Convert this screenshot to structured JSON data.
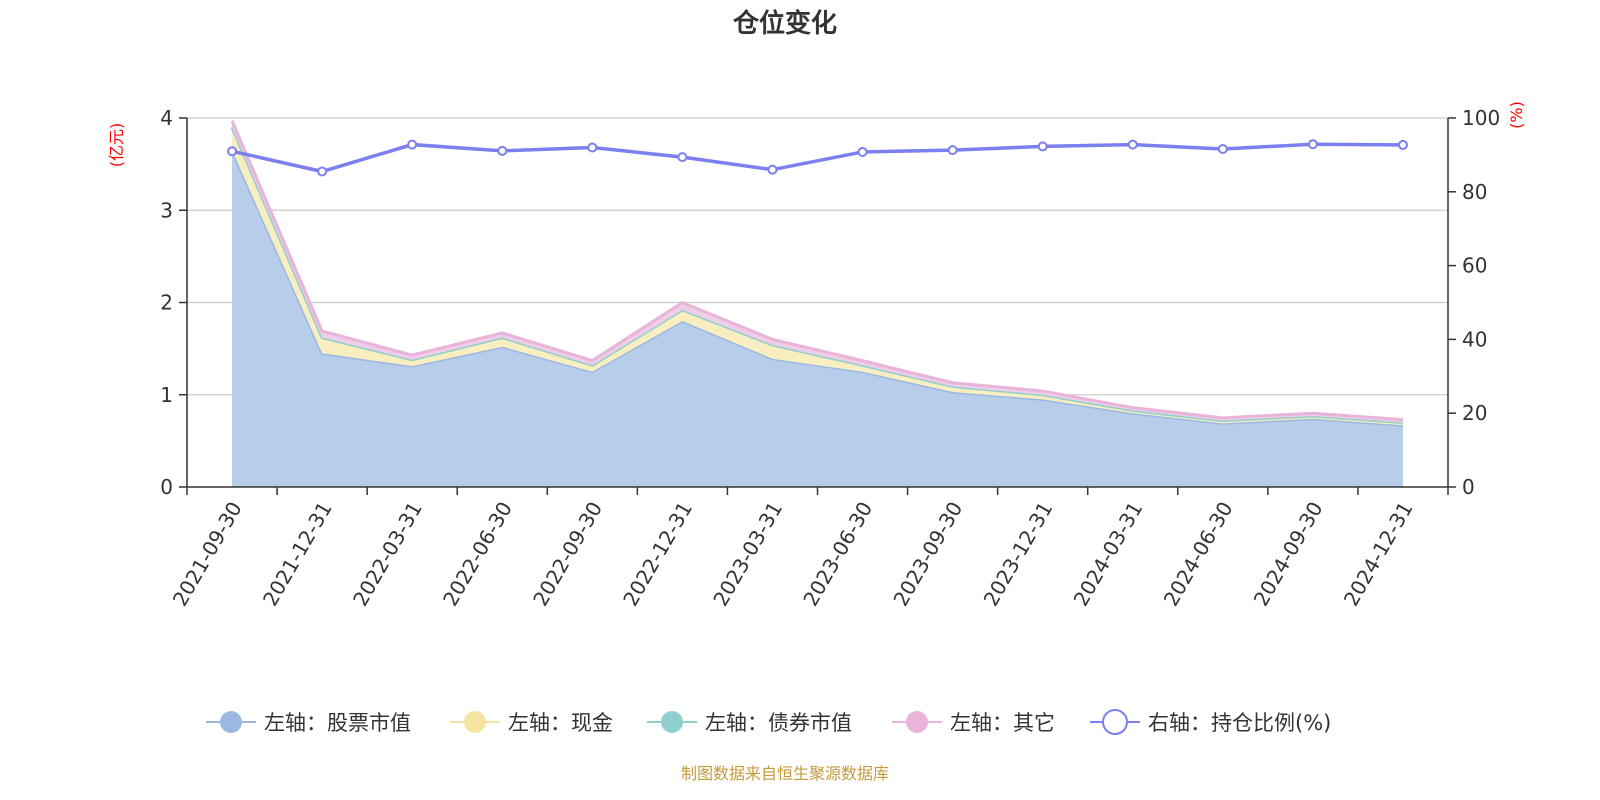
{
  "chart_data": {
    "type": "area",
    "title": "仓位变化",
    "categories": [
      "2021-09-30",
      "2021-12-31",
      "2022-03-31",
      "2022-06-30",
      "2022-09-30",
      "2022-12-31",
      "2023-03-31",
      "2023-06-30",
      "2023-09-30",
      "2023-12-31",
      "2024-03-31",
      "2024-06-30",
      "2024-09-30",
      "2024-12-31"
    ],
    "left_axis": {
      "unit_label": "(亿元)",
      "ylim": [
        0,
        4
      ],
      "ticks": [
        "0",
        "1",
        "2",
        "3",
        "4"
      ]
    },
    "right_axis": {
      "unit_label": "(%)",
      "ylim": [
        0,
        100
      ],
      "ticks": [
        "0",
        "20",
        "40",
        "60",
        "80",
        "100"
      ]
    },
    "series": [
      {
        "name": "左轴：股票市值",
        "axis": "left",
        "stacked": true,
        "color": "#9bb8e1",
        "fill": "#b8cdea",
        "values": [
          3.65,
          1.45,
          1.31,
          1.52,
          1.25,
          1.8,
          1.39,
          1.25,
          1.03,
          0.95,
          0.8,
          0.69,
          0.74,
          0.67
        ]
      },
      {
        "name": "左轴：现金",
        "axis": "left",
        "stacked": true,
        "color": "#f5e4a0",
        "fill": "#f9eec0",
        "values": [
          0.25,
          0.17,
          0.07,
          0.1,
          0.07,
          0.12,
          0.15,
          0.07,
          0.06,
          0.05,
          0.03,
          0.03,
          0.03,
          0.03
        ]
      },
      {
        "name": "左轴：债券市值",
        "axis": "left",
        "stacked": true,
        "color": "#8fd0cf",
        "fill": "#b5e2e1",
        "values": [
          0,
          0,
          0,
          0,
          0,
          0,
          0,
          0,
          0,
          0,
          0,
          0,
          0,
          0
        ]
      },
      {
        "name": "左轴：其它",
        "axis": "left",
        "stacked": true,
        "color": "#e8b4da",
        "fill": "#f0cde6",
        "values": [
          0.07,
          0.07,
          0.05,
          0.05,
          0.05,
          0.08,
          0.06,
          0.05,
          0.04,
          0.04,
          0.03,
          0.03,
          0.03,
          0.03
        ]
      },
      {
        "name": "右轴：持仓比例(%)",
        "axis": "right",
        "stacked": false,
        "color": "#7b7ff0",
        "fill": "none",
        "values": [
          91.0,
          85.5,
          92.8,
          91.1,
          92.0,
          89.4,
          86.0,
          90.8,
          91.3,
          92.3,
          92.8,
          91.6,
          92.9,
          92.7
        ]
      }
    ],
    "source_note": "制图数据来自恒生聚源数据库",
    "grid": true,
    "legend_position": "bottom-center"
  }
}
